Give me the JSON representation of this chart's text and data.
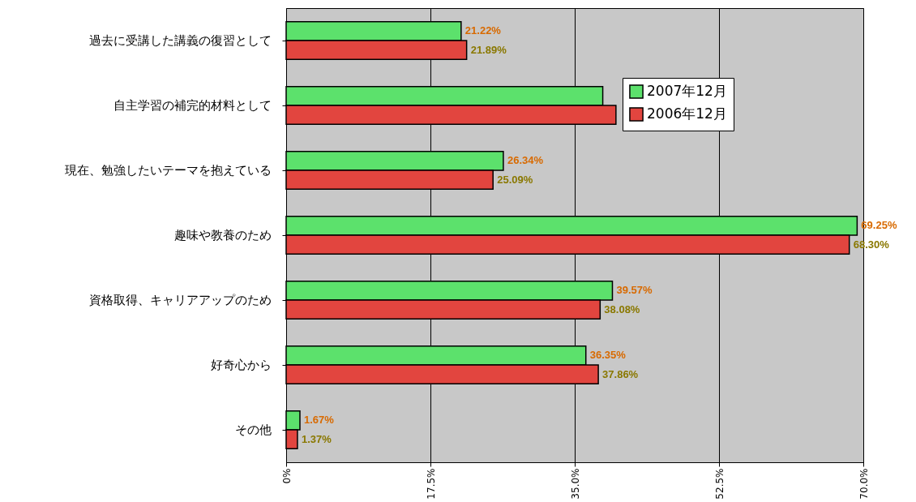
{
  "chart_data": {
    "type": "bar",
    "orientation": "horizontal",
    "categories": [
      "過去に受講した講義の復習として",
      "自主学習の補完的材料として",
      "現在、勉強したいテーマを抱えている",
      "趣味や教養のため",
      "資格取得、キャリアアップのため",
      "好奇心から",
      "その他"
    ],
    "series": [
      {
        "name": "2007年12月",
        "color": "#5ce16c",
        "values": [
          21.22,
          38.4,
          26.34,
          69.25,
          39.57,
          36.35,
          1.67
        ],
        "value_labels": [
          "21.22%",
          null,
          "26.34%",
          "69.25%",
          "39.57%",
          "36.35%",
          "1.67%"
        ]
      },
      {
        "name": "2006年12月",
        "color": "#e2453f",
        "values": [
          21.89,
          40.0,
          25.09,
          68.3,
          38.08,
          37.86,
          1.37
        ],
        "value_labels": [
          "21.89%",
          null,
          "25.09%",
          "68.30%",
          "38.08%",
          "37.86%",
          "1.37%"
        ]
      }
    ],
    "xlim": [
      0,
      70
    ],
    "xticks": [
      {
        "value": 0,
        "label": "0%"
      },
      {
        "value": 17.5,
        "label": "17.5%"
      },
      {
        "value": 35,
        "label": "35.0%"
      },
      {
        "value": 52.5,
        "label": "52.5%"
      },
      {
        "value": 70,
        "label": "70.0%"
      }
    ],
    "grid": "x",
    "legend": "top right"
  }
}
